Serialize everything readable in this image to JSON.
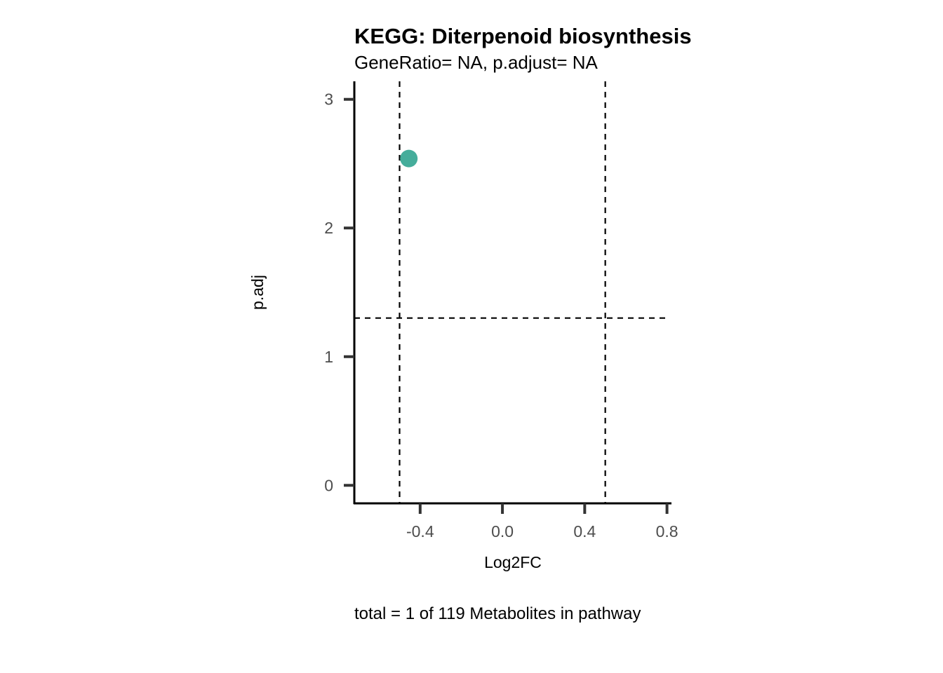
{
  "chart_data": {
    "type": "scatter",
    "title": "KEGG: Diterpenoid biosynthesis",
    "subtitle": "GeneRatio= NA, p.adjust= NA",
    "xlabel": "Log2FC",
    "ylabel": "p.adj",
    "caption": "total = 1 of 119 Metabolites in pathway",
    "xlim": [
      -0.72,
      0.815
    ],
    "ylim": [
      -0.14,
      3.14
    ],
    "x_ticks": [
      -0.4,
      0.0,
      0.4,
      0.8
    ],
    "x_tick_labels": [
      "-0.4",
      "0.0",
      "0.4",
      "0.8"
    ],
    "y_ticks": [
      0,
      1,
      2,
      3
    ],
    "y_tick_labels": [
      "0",
      "1",
      "2",
      "3"
    ],
    "vlines": [
      -0.5,
      0.5
    ],
    "hline": 1.3,
    "points": [
      {
        "x": -0.455,
        "y": 2.54
      }
    ],
    "point_color": "#45ad9b",
    "grid": false,
    "legend": "none"
  }
}
